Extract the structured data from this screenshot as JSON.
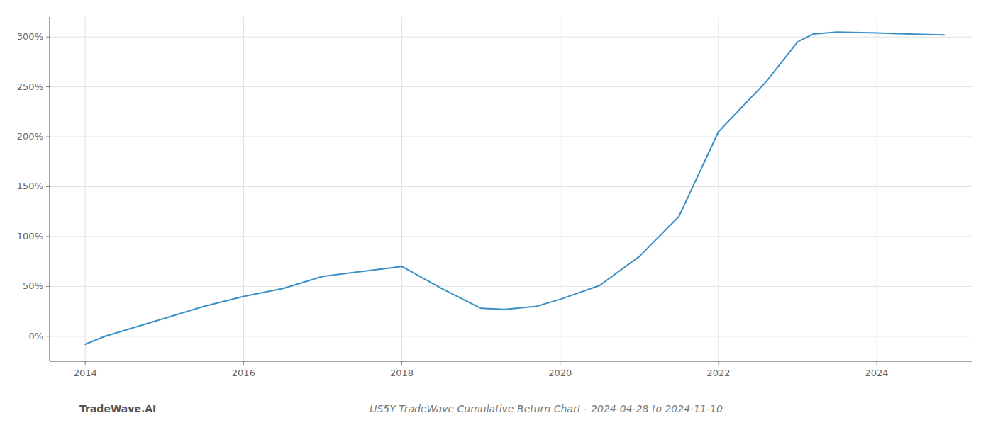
{
  "chart_data": {
    "type": "line",
    "title": "US5Y TradeWave Cumulative Return Chart - 2024-04-28 to 2024-11-10",
    "annotations": [
      "TradeWave.AI"
    ],
    "x": [
      2014.0,
      2014.25,
      2015.0,
      2015.5,
      2016.0,
      2016.5,
      2017.0,
      2017.5,
      2018.0,
      2018.5,
      2019.0,
      2019.3,
      2019.7,
      2020.0,
      2020.5,
      2021.0,
      2021.5,
      2022.0,
      2022.3,
      2022.6,
      2023.0,
      2023.2,
      2023.5,
      2024.0,
      2024.4,
      2024.85
    ],
    "values": [
      -8,
      0,
      18,
      30,
      40,
      48,
      60,
      65,
      70,
      48,
      28,
      27,
      30,
      37,
      51,
      80,
      120,
      205,
      230,
      255,
      295,
      303,
      305,
      304,
      303,
      302
    ],
    "color": "#3a8fc7",
    "xlim": [
      2013.55,
      2025.2
    ],
    "ylim": [
      -25,
      320
    ],
    "xticks": [
      2014,
      2016,
      2018,
      2020,
      2022,
      2024
    ],
    "yticks": [
      {
        "value": 0,
        "label": "0%"
      },
      {
        "value": 50,
        "label": "50%"
      },
      {
        "value": 100,
        "label": "100%"
      },
      {
        "value": 150,
        "label": "150%"
      },
      {
        "value": 200,
        "label": "200%"
      },
      {
        "value": 250,
        "label": "250%"
      },
      {
        "value": 300,
        "label": "300%"
      }
    ],
    "grid": true
  }
}
